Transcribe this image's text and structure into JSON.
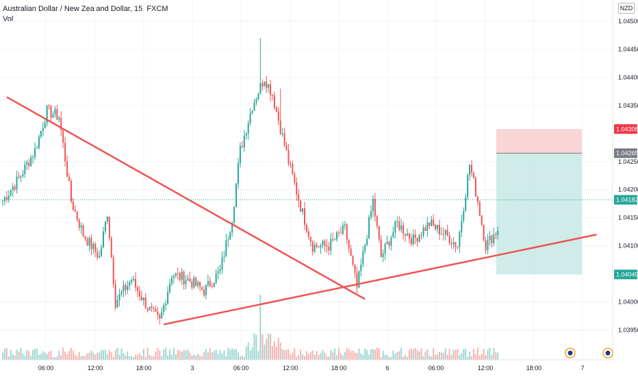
{
  "header": {
    "title": "Australian Dollar / New Zealand Dollar, 15, FXCM",
    "volume_label": "Vol"
  },
  "currency": "NZD",
  "colors": {
    "up": "#26a69a",
    "down": "#ef5350",
    "trendline": "#ef5350",
    "stop_zone": "#f8c7c7",
    "target_zone": "#bfe6e2",
    "current_price_line": "#26a69a"
  },
  "chart_data": {
    "type": "candlestick",
    "title": "Australian Dollar / New Zealand Dollar, 15, FXCM",
    "y_axis": {
      "ticks": [
        "1.04500",
        "1.04450",
        "1.04400",
        "1.04350",
        "1.04250",
        "1.04200",
        "1.04150",
        "1.04100",
        "1.04000",
        "1.03950"
      ],
      "tick_values": [
        1.045,
        1.0445,
        1.044,
        1.0435,
        1.0425,
        1.042,
        1.0415,
        1.041,
        1.04,
        1.0395
      ],
      "range": [
        1.03925,
        1.04522
      ]
    },
    "x_axis": {
      "ticks": [
        "06:00",
        "12:00",
        "18:00",
        "3",
        "06:00",
        "12:00",
        "18:00",
        "6",
        "06:00",
        "12:00",
        "18:00",
        "7"
      ]
    },
    "price_labels": [
      {
        "value": "1.04308",
        "kind": "stop"
      },
      {
        "value": "1.04265",
        "kind": "entry"
      },
      {
        "value": "1.04182",
        "kind": "current"
      },
      {
        "value": "1.04049",
        "kind": "target"
      }
    ],
    "short_position": {
      "entry": 1.04265,
      "stop": 1.04308,
      "target": 1.04049
    },
    "trendlines": [
      {
        "name": "descending",
        "from": {
          "bar": 2,
          "price": 1.04365
        },
        "to": {
          "bar": 180,
          "price": 1.04005
        }
      },
      {
        "name": "ascending",
        "from": {
          "bar": 80,
          "price": 1.0396
        },
        "to": {
          "bar": 295,
          "price": 1.0412
        }
      }
    ],
    "ohlc_anchors": [
      [
        0,
        1.0418
      ],
      [
        8,
        1.0422
      ],
      [
        16,
        1.0427
      ],
      [
        22,
        1.0434
      ],
      [
        28,
        1.0433
      ],
      [
        34,
        1.0418
      ],
      [
        40,
        1.0412
      ],
      [
        48,
        1.0408
      ],
      [
        52,
        1.0416
      ],
      [
        56,
        1.04
      ],
      [
        64,
        1.0404
      ],
      [
        72,
        1.0399
      ],
      [
        78,
        1.03965
      ],
      [
        84,
        1.0405
      ],
      [
        92,
        1.0404
      ],
      [
        100,
        1.0402
      ],
      [
        108,
        1.04055
      ],
      [
        114,
        1.0415
      ],
      [
        118,
        1.0427
      ],
      [
        124,
        1.0435
      ],
      [
        130,
        1.044
      ],
      [
        134,
        1.0437
      ],
      [
        138,
        1.0431
      ],
      [
        142,
        1.0425
      ],
      [
        148,
        1.0417
      ],
      [
        154,
        1.041
      ],
      [
        162,
        1.041
      ],
      [
        170,
        1.0413
      ],
      [
        176,
        1.04025
      ],
      [
        184,
        1.0418
      ],
      [
        188,
        1.0408
      ],
      [
        196,
        1.0414
      ],
      [
        204,
        1.0411
      ],
      [
        212,
        1.0414
      ],
      [
        220,
        1.0412
      ],
      [
        226,
        1.041
      ],
      [
        232,
        1.04245
      ],
      [
        236,
        1.0418
      ],
      [
        240,
        1.041
      ],
      [
        246,
        1.0413
      ]
    ]
  }
}
